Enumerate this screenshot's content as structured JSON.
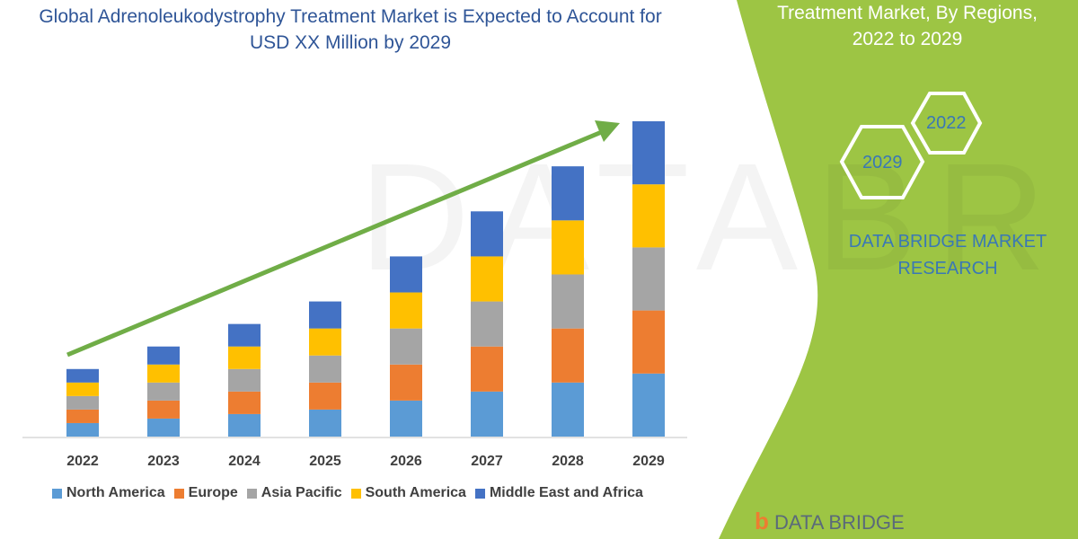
{
  "chart_data": {
    "type": "bar",
    "stacked": true,
    "title": "Global Adrenoleukodystrophy Treatment Market is Expected to Account for USD XX Million by 2029",
    "categories": [
      "2022",
      "2023",
      "2024",
      "2025",
      "2026",
      "2027",
      "2028",
      "2029"
    ],
    "series": [
      {
        "name": "North America",
        "color": "#5b9bd5",
        "values": [
          15,
          20,
          25,
          30,
          40,
          50,
          60,
          70
        ]
      },
      {
        "name": "Europe",
        "color": "#ed7d31",
        "values": [
          15,
          20,
          25,
          30,
          40,
          50,
          60,
          70
        ]
      },
      {
        "name": "Asia Pacific",
        "color": "#a5a5a5",
        "values": [
          15,
          20,
          25,
          30,
          40,
          50,
          60,
          70
        ]
      },
      {
        "name": "South America",
        "color": "#ffc000",
        "values": [
          15,
          20,
          25,
          30,
          40,
          50,
          60,
          70
        ]
      },
      {
        "name": "Middle East and Africa",
        "color": "#4472c4",
        "values": [
          15,
          20,
          25,
          30,
          40,
          50,
          60,
          70
        ]
      }
    ],
    "legend_position": "bottom",
    "grid": false,
    "y_axis_shown": false,
    "trend_arrow": {
      "color": "#70ad47",
      "direction": "up-right"
    }
  },
  "side_panel": {
    "title_line1": "Treatment Market, By Regions,",
    "title_line2": "2022 to 2029",
    "hex_left": "2029",
    "hex_right": "2022",
    "brand_line1": "DATA BRIDGE MARKET",
    "brand_line2": "RESEARCH",
    "panel_color": "#9dc544",
    "logo_text": "DATA BRIDGE"
  }
}
